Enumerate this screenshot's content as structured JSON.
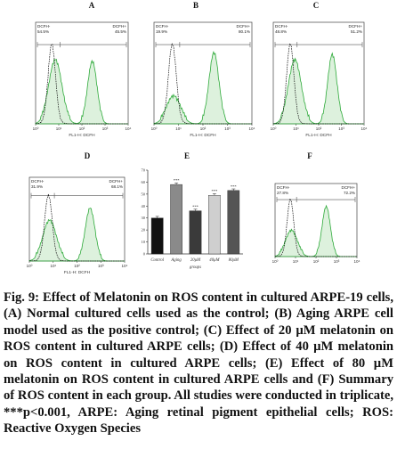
{
  "figure": {
    "caption": "Fig. 9: Effect of Melatonin on ROS content in cultured ARPE-19 cells, (A) Normal cultured cells used as the control; (B) Aging ARPE cell model used as the positive control; (C) Effect of 20 µM melatonin on ROS content in cultured ARPE cells; (D) Effect of 40 µM melatonin on ROS content in cultured ARPE cells; (E) Effect of 80 µM melatonin on ROS content in cultured ARPE cells and (F) Summary of ROS content in each group. All studies were conducted in triplicate, ***p<0.001, ARPE: Aging retinal pigment epithelial cells; ROS: Reactive Oxygen Species"
  },
  "chart_data": [
    {
      "panel": "A",
      "type": "area",
      "gate_left": {
        "label": "DCFH-",
        "value": "54.5%"
      },
      "gate_right": {
        "label": "DCFH+",
        "value": "45.5%"
      },
      "xlabel": "FL1-H: DCFH",
      "x_ticks": [
        "10⁰",
        "10¹",
        "10²",
        "10³",
        "10⁴"
      ],
      "control_peak_log": 0.7,
      "sample_peaks_log": [
        0.85,
        2.45
      ],
      "sample_peak_heights": [
        0.72,
        0.7
      ]
    },
    {
      "panel": "B",
      "type": "area",
      "gate_left": {
        "label": "DCFH-",
        "value": "19.9%"
      },
      "gate_right": {
        "label": "DCFH+",
        "value": "80.1%"
      },
      "xlabel": "FL1-H: DCFH",
      "x_ticks": [
        "10⁰",
        "10¹",
        "10²",
        "10³",
        "10⁴"
      ],
      "control_peak_log": 0.75,
      "sample_peaks_log": [
        0.8,
        2.45
      ],
      "sample_peak_heights": [
        0.3,
        0.8
      ]
    },
    {
      "panel": "C",
      "type": "area",
      "gate_left": {
        "label": "DCFH-",
        "value": "48.8%"
      },
      "gate_right": {
        "label": "DCFH+",
        "value": "51.2%"
      },
      "xlabel": "FL1-H: DCFH",
      "x_ticks": [
        "10⁰",
        "10¹",
        "10²",
        "10³",
        "10⁴"
      ],
      "control_peak_log": 0.75,
      "sample_peaks_log": [
        0.95,
        2.6
      ],
      "sample_peak_heights": [
        0.72,
        0.78
      ]
    },
    {
      "panel": "D",
      "type": "area",
      "gate_left": {
        "label": "DCFH-",
        "value": "31.9%"
      },
      "gate_right": {
        "label": "DCFH+",
        "value": "68.1%"
      },
      "xlabel": "FL1-H: DCFH",
      "x_ticks": [
        "10⁰",
        "10¹",
        "10²",
        "10³",
        "10⁴"
      ],
      "control_peak_log": 0.8,
      "sample_peaks_log": [
        0.85,
        2.55
      ],
      "sample_peak_heights": [
        0.55,
        0.72
      ]
    },
    {
      "panel": "E",
      "type": "bar",
      "categories": [
        "Control",
        "Aging",
        "20μM",
        "40μM",
        "80μM"
      ],
      "xlabel": "groups",
      "values": [
        30,
        58,
        36,
        49,
        53
      ],
      "colors": [
        "#111111",
        "#8a8a8a",
        "#3a3a3a",
        "#cfcfcf",
        "#555555"
      ],
      "annotations": [
        "",
        "***",
        "***",
        "***",
        "***"
      ],
      "ylim": [
        0,
        70
      ],
      "y_ticks": [
        0,
        10,
        20,
        30,
        40,
        50,
        60,
        70
      ]
    },
    {
      "panel": "F",
      "type": "area",
      "gate_left": {
        "label": "DCFH-",
        "value": "27.8%"
      },
      "gate_right": {
        "label": "DCFH+",
        "value": "72.2%"
      },
      "x_ticks": [
        "10⁰",
        "10¹",
        "10²",
        "10³",
        "10⁴"
      ],
      "control_peak_log": 0.75,
      "sample_peaks_log": [
        0.8,
        2.5
      ],
      "sample_peak_heights": [
        0.4,
        0.78
      ]
    }
  ]
}
